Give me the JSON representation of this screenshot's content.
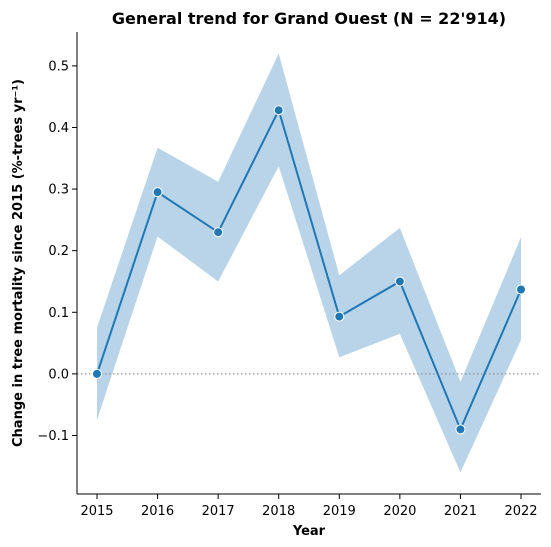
{
  "chart_data": {
    "type": "line",
    "title": "General trend for Grand Ouest  (N = 22'914)",
    "xlabel": "Year",
    "ylabel": "Change in tree mortality since 2015 (%-trees yr⁻¹)",
    "x": [
      2015,
      2016,
      2017,
      2018,
      2019,
      2020,
      2021,
      2022
    ],
    "xlim": [
      2014.67,
      2022.33
    ],
    "ylim": [
      -0.195,
      0.555
    ],
    "yticks": [
      -0.1,
      0.0,
      0.1,
      0.2,
      0.3,
      0.4,
      0.5
    ],
    "ytick_labels": [
      "−0.1",
      "0.0",
      "0.1",
      "0.2",
      "0.3",
      "0.4",
      "0.5"
    ],
    "xtick_labels": [
      "2015",
      "2016",
      "2017",
      "2018",
      "2019",
      "2020",
      "2021",
      "2022"
    ],
    "series": [
      {
        "values": [
          0.0,
          0.295,
          0.23,
          0.428,
          0.093,
          0.15,
          -0.09,
          0.137
        ],
        "ci_upper": [
          0.075,
          0.367,
          0.312,
          0.52,
          0.16,
          0.237,
          -0.013,
          0.222
        ],
        "ci_lower": [
          -0.075,
          0.223,
          0.15,
          0.337,
          0.027,
          0.065,
          -0.16,
          0.055
        ],
        "color": "#1f77b4",
        "band_color": "#b9d4e8"
      }
    ],
    "reference_line": {
      "y": 0.0,
      "style": "dotted",
      "color": "#808080"
    },
    "grid": false,
    "legend": "none"
  }
}
